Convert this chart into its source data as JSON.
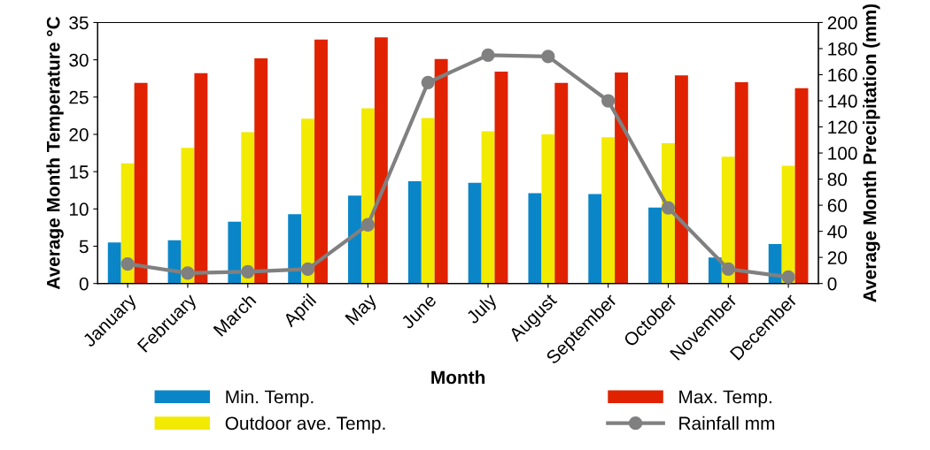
{
  "chart_data": {
    "type": "bar",
    "xlabel": "Month",
    "ylabel": "Average Month Temperature °C",
    "y2label": "Average Month Precipitation (mm)",
    "categories": [
      "January",
      "February",
      "March",
      "April",
      "May",
      "June",
      "July",
      "August",
      "September",
      "October",
      "November",
      "December"
    ],
    "series": [
      {
        "name": "Min. Temp.",
        "color": "#0a86c8",
        "values": [
          5.5,
          5.8,
          8.3,
          9.3,
          11.8,
          13.7,
          13.5,
          12.1,
          12.0,
          10.2,
          3.5,
          5.3
        ]
      },
      {
        "name": "Outdoor ave. Temp.",
        "color": "#f2ea00",
        "values": [
          16.1,
          18.2,
          20.3,
          22.1,
          23.5,
          22.2,
          20.4,
          20.0,
          19.6,
          18.8,
          17.0,
          15.8
        ]
      },
      {
        "name": "Max. Temp.",
        "color": "#e02200",
        "values": [
          26.9,
          28.2,
          30.2,
          32.7,
          33.0,
          30.1,
          28.4,
          26.9,
          28.3,
          27.9,
          27.0,
          26.2
        ]
      },
      {
        "name": "Rainfall mm",
        "color": "#808080",
        "type": "line",
        "axis": "y2",
        "marker": "circle",
        "values": [
          15,
          8,
          9,
          11,
          45,
          154,
          175,
          174,
          140,
          58,
          11,
          5
        ]
      }
    ],
    "ylim": [
      0,
      35
    ],
    "yticks": [
      0,
      5,
      10,
      15,
      20,
      25,
      30,
      35
    ],
    "y2lim": [
      0,
      200
    ],
    "y2ticks": [
      0,
      20,
      40,
      60,
      80,
      100,
      120,
      140,
      160,
      180,
      200
    ],
    "grid": false,
    "legend": "bottom"
  }
}
